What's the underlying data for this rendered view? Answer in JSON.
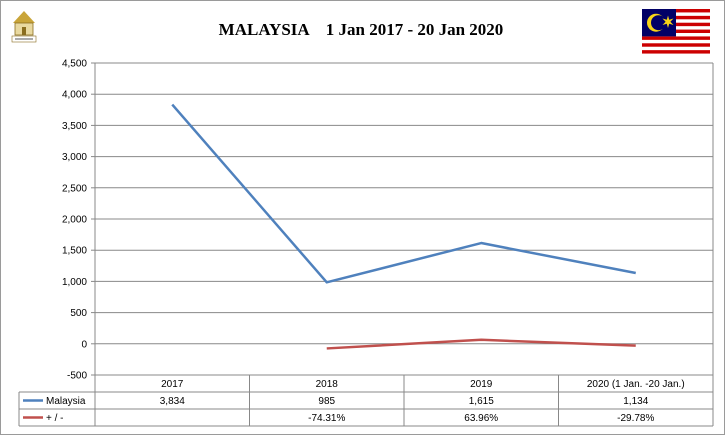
{
  "title": "MALAYSIA    1 Jan 2017 - 20 Jan 2020",
  "logo_icon": "atta-logo-icon",
  "flag_icon": "malaysia-flag-icon",
  "chart_data": {
    "type": "line",
    "categories": [
      "2017",
      "2018",
      "2019",
      "2020 (1 Jan. -20 Jan.)"
    ],
    "ylim": [
      -500,
      4500
    ],
    "yticks": [
      -500,
      0,
      500,
      1000,
      1500,
      2000,
      2500,
      3000,
      3500,
      4000,
      4500
    ],
    "ytick_labels": [
      "-500",
      "0",
      "500",
      "1,000",
      "1,500",
      "2,000",
      "2,500",
      "3,000",
      "3,500",
      "4,000",
      "4,500"
    ],
    "grid": true,
    "series": [
      {
        "name": "Malaysia",
        "color": "#4f81bd",
        "values": [
          3834,
          985,
          1615,
          1134
        ],
        "table_values": [
          "3,834",
          "985",
          "1,615",
          "1,134"
        ]
      },
      {
        "name": "+ / -",
        "color": "#c0504d",
        "values": [
          null,
          -74.31,
          63.96,
          -29.78
        ],
        "table_values": [
          "",
          "-74.31%",
          "63.96%",
          "-29.78%"
        ]
      }
    ]
  }
}
